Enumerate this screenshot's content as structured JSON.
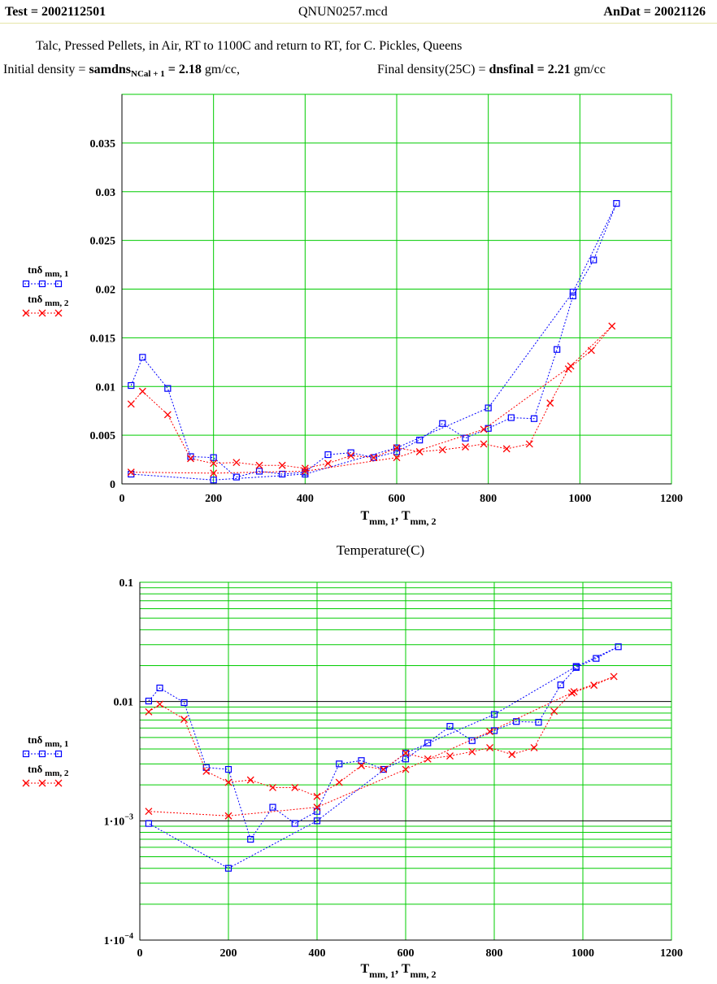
{
  "header": {
    "test_label": "Test = ",
    "test_value": "2002112501",
    "file": "QNUN0257.mcd",
    "andat_label": "AnDat = ",
    "andat_value": "20021126"
  },
  "description": "Talc,  Pressed Pellets,  in Air,  RT to 1100C and return to RT,  for C. Pickles, Queens",
  "density": {
    "initial_label": "Initial density = ",
    "initial_var": "samdns",
    "initial_sub": "NCal + 1",
    "initial_value": " = 2.18",
    "initial_unit": " gm/cc,",
    "final_label": "Final density(25C) = ",
    "final_var": "dnsfinal = 2.21",
    "final_unit": " gm/cc"
  },
  "chart_data": [
    {
      "type": "line",
      "yscale": "linear",
      "xlabel": "T",
      "xlabel_sub": "mm, 1",
      "xlabel_sep": ", T",
      "xlabel_sub2": "mm, 2",
      "caption": "Temperature(C)",
      "xlim": [
        0,
        1200
      ],
      "ylim": [
        0,
        0.04
      ],
      "x_ticks": [
        0,
        200,
        400,
        600,
        800,
        1000,
        1200
      ],
      "y_ticks": [
        0,
        0.005,
        0.01,
        0.015,
        0.02,
        0.025,
        0.03,
        0.035
      ],
      "x_tick_labels": [
        "0",
        "200",
        "400",
        "600",
        "800",
        "1000",
        "1200"
      ],
      "y_tick_labels": [
        "0",
        "0.005",
        "0.01",
        "0.015",
        "0.02",
        "0.025",
        "0.03",
        "0.035"
      ],
      "grid": true,
      "legend_position": "left",
      "series": [
        {
          "name": "tnδ",
          "name_sub": "mm, 1",
          "color": "#0000ff",
          "marker": "square",
          "x": [
            20,
            45,
            100,
            150,
            200,
            250,
            300,
            350,
            400,
            450,
            500,
            550,
            600,
            650,
            700,
            750,
            800,
            850,
            900,
            950,
            985,
            1030,
            1080,
            985,
            800,
            600,
            400,
            200,
            20
          ],
          "y": [
            0.0101,
            0.013,
            0.0098,
            0.0028,
            0.0027,
            0.0007,
            0.0013,
            0.001,
            0.0012,
            0.003,
            0.0032,
            0.0027,
            0.0033,
            0.0045,
            0.0062,
            0.0047,
            0.0057,
            0.0068,
            0.0067,
            0.0138,
            0.0193,
            0.023,
            0.0288,
            0.0197,
            0.0078,
            0.0037,
            0.001,
            0.0004,
            0.001
          ]
        },
        {
          "name": "tnδ",
          "name_sub": "mm, 2",
          "color": "#ff0000",
          "marker": "x",
          "x": [
            20,
            45,
            100,
            150,
            200,
            250,
            300,
            350,
            400,
            450,
            500,
            550,
            600,
            650,
            700,
            750,
            790,
            840,
            890,
            935,
            975,
            1025,
            1070,
            980,
            790,
            600,
            400,
            200,
            20
          ],
          "y": [
            0.0082,
            0.0095,
            0.0071,
            0.0026,
            0.0021,
            0.0022,
            0.0019,
            0.0019,
            0.0016,
            0.0021,
            0.0029,
            0.0027,
            0.0037,
            0.0033,
            0.0035,
            0.0038,
            0.0041,
            0.0036,
            0.0041,
            0.0083,
            0.0118,
            0.0137,
            0.0162,
            0.0121,
            0.0056,
            0.0027,
            0.0013,
            0.0011,
            0.0012
          ]
        }
      ]
    },
    {
      "type": "line",
      "yscale": "log",
      "xlabel": "T",
      "xlabel_sub": "mm, 1",
      "xlabel_sep": ", T",
      "xlabel_sub2": "mm, 2",
      "xlim": [
        0,
        1200
      ],
      "ylim": [
        0.0001,
        0.1
      ],
      "x_ticks": [
        0,
        200,
        400,
        600,
        800,
        1000,
        1200
      ],
      "x_tick_labels": [
        "0",
        "200",
        "400",
        "600",
        "800",
        "1000",
        "1200"
      ],
      "y_tick_labels": [
        "0.1",
        "0.01",
        "1·10",
        "1·10"
      ],
      "y_tick_exponents": [
        "",
        "",
        "−3",
        "−4"
      ],
      "y_tick_values": [
        0.1,
        0.01,
        0.001,
        0.0001
      ],
      "grid": true,
      "legend_position": "left",
      "series": [
        {
          "name": "tnδ",
          "name_sub": "mm, 1",
          "color": "#0000ff",
          "marker": "square",
          "x": [
            20,
            45,
            100,
            150,
            200,
            250,
            300,
            350,
            400,
            450,
            500,
            550,
            600,
            650,
            700,
            750,
            800,
            850,
            900,
            950,
            985,
            1030,
            1080,
            985,
            800,
            600,
            400,
            200,
            20
          ],
          "y": [
            0.0101,
            0.013,
            0.0098,
            0.0028,
            0.0027,
            0.0007,
            0.0013,
            0.00095,
            0.0012,
            0.003,
            0.0032,
            0.0027,
            0.0033,
            0.0045,
            0.0062,
            0.0047,
            0.0057,
            0.0068,
            0.0067,
            0.0138,
            0.0193,
            0.023,
            0.0288,
            0.0197,
            0.0078,
            0.0037,
            0.001,
            0.0004,
            0.00095
          ]
        },
        {
          "name": "tnδ",
          "name_sub": "mm, 2",
          "color": "#ff0000",
          "marker": "x",
          "x": [
            20,
            45,
            100,
            150,
            200,
            250,
            300,
            350,
            400,
            450,
            500,
            550,
            600,
            650,
            700,
            750,
            790,
            840,
            890,
            935,
            975,
            1025,
            1070,
            980,
            790,
            600,
            400,
            200,
            20
          ],
          "y": [
            0.0082,
            0.0095,
            0.0071,
            0.0026,
            0.0021,
            0.0022,
            0.0019,
            0.0019,
            0.0016,
            0.0021,
            0.0029,
            0.0027,
            0.0037,
            0.0033,
            0.0035,
            0.0038,
            0.0041,
            0.0036,
            0.0041,
            0.0083,
            0.0118,
            0.0137,
            0.0162,
            0.0121,
            0.0056,
            0.0027,
            0.0013,
            0.0011,
            0.0012
          ]
        }
      ]
    }
  ]
}
